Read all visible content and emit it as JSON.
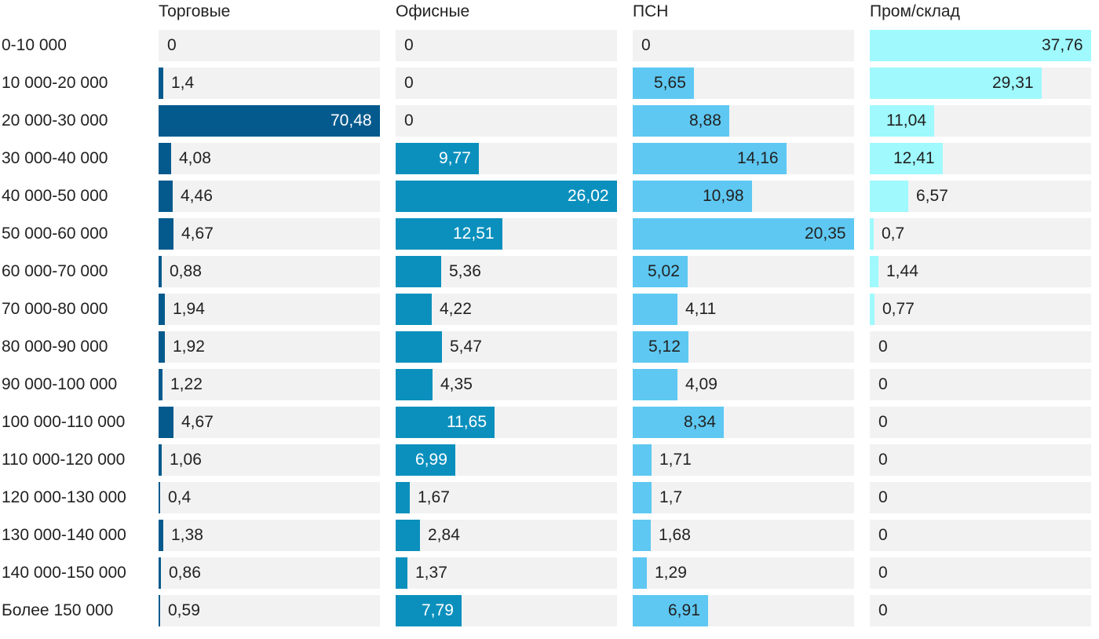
{
  "chart_data": {
    "type": "bar",
    "orientation": "horizontal",
    "layout": "small-multiples",
    "categories": [
      "0-10 000",
      "10 000-20 000",
      "20 000-30 000",
      "30 000-40 000",
      "40 000-50 000",
      "50 000-60 000",
      "60 000-70 000",
      "70 000-80 000",
      "80 000-90 000",
      "90 000-100 000",
      "100 000-110 000",
      "110 000-120 000",
      "120 000-130 000",
      "130 000-140 000",
      "140 000-150 000",
      "Более 150 000"
    ],
    "series": [
      {
        "name": "Торговые",
        "color": "#045a8d",
        "xlim": [
          0,
          70.48
        ],
        "values": [
          0,
          1.4,
          70.48,
          4.08,
          4.46,
          4.67,
          0.88,
          1.94,
          1.92,
          1.22,
          4.67,
          1.06,
          0.4,
          1.38,
          0.86,
          0.59
        ],
        "labels": [
          "0",
          "1,4",
          "70,48",
          "4,08",
          "4,46",
          "4,67",
          "0,88",
          "1,94",
          "1,92",
          "1,22",
          "4,67",
          "1,06",
          "0,4",
          "1,38",
          "0,86",
          "0,59"
        ]
      },
      {
        "name": "Офисные",
        "color": "#0b90bd",
        "xlim": [
          0,
          26.02
        ],
        "values": [
          0,
          0,
          0,
          9.77,
          26.02,
          12.51,
          5.36,
          4.22,
          5.47,
          4.35,
          11.65,
          6.99,
          1.67,
          2.84,
          1.37,
          7.79
        ],
        "labels": [
          "0",
          "0",
          "0",
          "9,77",
          "26,02",
          "12,51",
          "5,36",
          "4,22",
          "5,47",
          "4,35",
          "11,65",
          "6,99",
          "1,67",
          "2,84",
          "1,37",
          "7,79"
        ]
      },
      {
        "name": "ПСН",
        "color": "#5ec8f2",
        "xlim": [
          0,
          20.35
        ],
        "values": [
          0,
          5.65,
          8.88,
          14.16,
          10.98,
          20.35,
          5.02,
          4.11,
          5.12,
          4.09,
          8.34,
          1.71,
          1.7,
          1.68,
          1.29,
          6.91
        ],
        "labels": [
          "0",
          "5,65",
          "8,88",
          "14,16",
          "10,98",
          "20,35",
          "5,02",
          "4,11",
          "5,12",
          "4,09",
          "8,34",
          "1,71",
          "1,7",
          "1,68",
          "1,29",
          "6,91"
        ]
      },
      {
        "name": "Пром/склад",
        "color": "#9ff9fd",
        "xlim": [
          0,
          37.76
        ],
        "values": [
          37.76,
          29.31,
          11.04,
          12.41,
          6.57,
          0.7,
          1.44,
          0.77,
          0,
          0,
          0,
          0,
          0,
          0,
          0,
          0
        ],
        "labels": [
          "37,76",
          "29,31",
          "11,04",
          "12,41",
          "6,57",
          "0,7",
          "1,44",
          "0,77",
          "0",
          "0",
          "0",
          "0",
          "0",
          "0",
          "0",
          "0"
        ]
      }
    ],
    "track_color": "#f2f2f2",
    "grid": false,
    "legend": "none"
  }
}
